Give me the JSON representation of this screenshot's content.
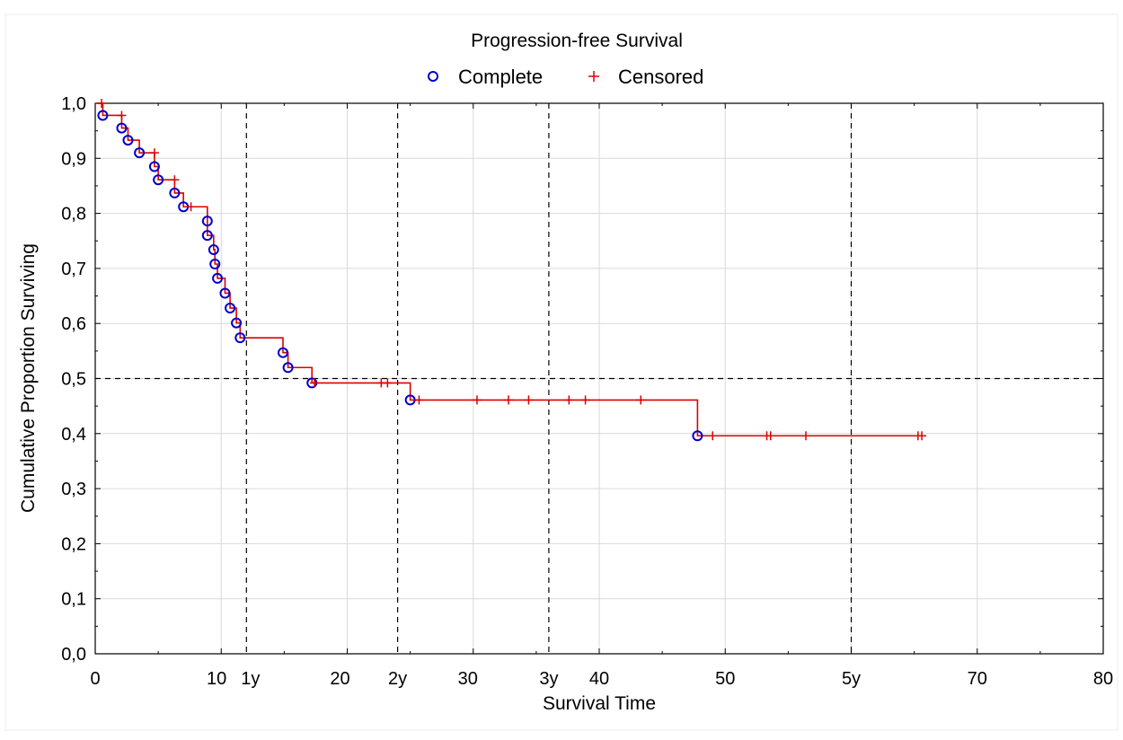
{
  "chart_data": {
    "type": "line",
    "title": "Progression-free Survival",
    "xlabel": "Survival Time",
    "ylabel": "Cumulative Proportion Surviving",
    "xlim": [
      0,
      80
    ],
    "ylim": [
      0,
      1
    ],
    "grid": true,
    "legend_position": "top-center",
    "legend": [
      {
        "name": "Complete",
        "marker": "circle",
        "color": "#0000cc"
      },
      {
        "name": "Censored",
        "marker": "plus",
        "color": "#dd0000"
      }
    ],
    "x_ticks": [
      {
        "value": 0,
        "label": "0"
      },
      {
        "value": 10,
        "label": "10"
      },
      {
        "value": 12,
        "label": "1y"
      },
      {
        "value": 20,
        "label": "20"
      },
      {
        "value": 24,
        "label": "2y"
      },
      {
        "value": 30,
        "label": "30"
      },
      {
        "value": 36,
        "label": "3y"
      },
      {
        "value": 40,
        "label": "40"
      },
      {
        "value": 50,
        "label": "50"
      },
      {
        "value": 60,
        "label": "5y"
      },
      {
        "value": 70,
        "label": "70"
      },
      {
        "value": 80,
        "label": "80"
      }
    ],
    "y_ticks": [
      "0,0",
      "0,1",
      "0,2",
      "0,3",
      "0,4",
      "0,5",
      "0,6",
      "0,7",
      "0,8",
      "0,9",
      "1,0"
    ],
    "reference_lines": {
      "vertical": [
        12,
        24,
        36,
        60
      ],
      "horizontal": [
        0.5
      ]
    },
    "line_color": "#dd0000",
    "events": [
      {
        "t": 0.6,
        "s": 0.978
      },
      {
        "t": 2.1,
        "s": 0.955
      },
      {
        "t": 2.6,
        "s": 0.933
      },
      {
        "t": 3.5,
        "s": 0.91
      },
      {
        "t": 4.7,
        "s": 0.885
      },
      {
        "t": 5.0,
        "s": 0.861
      },
      {
        "t": 6.3,
        "s": 0.837
      },
      {
        "t": 7.0,
        "s": 0.812
      },
      {
        "t": 8.9,
        "s": 0.786
      },
      {
        "t": 8.9,
        "s": 0.76
      },
      {
        "t": 9.4,
        "s": 0.734
      },
      {
        "t": 9.5,
        "s": 0.708
      },
      {
        "t": 9.7,
        "s": 0.682
      },
      {
        "t": 10.3,
        "s": 0.655
      },
      {
        "t": 10.7,
        "s": 0.628
      },
      {
        "t": 11.2,
        "s": 0.601
      },
      {
        "t": 11.5,
        "s": 0.574
      },
      {
        "t": 14.9,
        "s": 0.547
      },
      {
        "t": 15.3,
        "s": 0.52
      },
      {
        "t": 17.2,
        "s": 0.492
      },
      {
        "t": 25.0,
        "s": 0.461
      },
      {
        "t": 47.8,
        "s": 0.396
      }
    ],
    "censored": [
      {
        "t": 0.5,
        "s": 1.0
      },
      {
        "t": 2.1,
        "s": 0.978
      },
      {
        "t": 4.7,
        "s": 0.91
      },
      {
        "t": 6.3,
        "s": 0.861
      },
      {
        "t": 7.6,
        "s": 0.812
      },
      {
        "t": 17.4,
        "s": 0.492
      },
      {
        "t": 22.7,
        "s": 0.492
      },
      {
        "t": 23.2,
        "s": 0.492
      },
      {
        "t": 25.7,
        "s": 0.461
      },
      {
        "t": 30.3,
        "s": 0.461
      },
      {
        "t": 32.8,
        "s": 0.461
      },
      {
        "t": 34.4,
        "s": 0.461
      },
      {
        "t": 37.6,
        "s": 0.461
      },
      {
        "t": 38.9,
        "s": 0.461
      },
      {
        "t": 43.3,
        "s": 0.461
      },
      {
        "t": 49.0,
        "s": 0.396
      },
      {
        "t": 53.3,
        "s": 0.396
      },
      {
        "t": 53.6,
        "s": 0.396
      },
      {
        "t": 56.4,
        "s": 0.396
      },
      {
        "t": 65.3,
        "s": 0.396
      },
      {
        "t": 65.6,
        "s": 0.396
      }
    ],
    "curve_end": 65.6
  }
}
